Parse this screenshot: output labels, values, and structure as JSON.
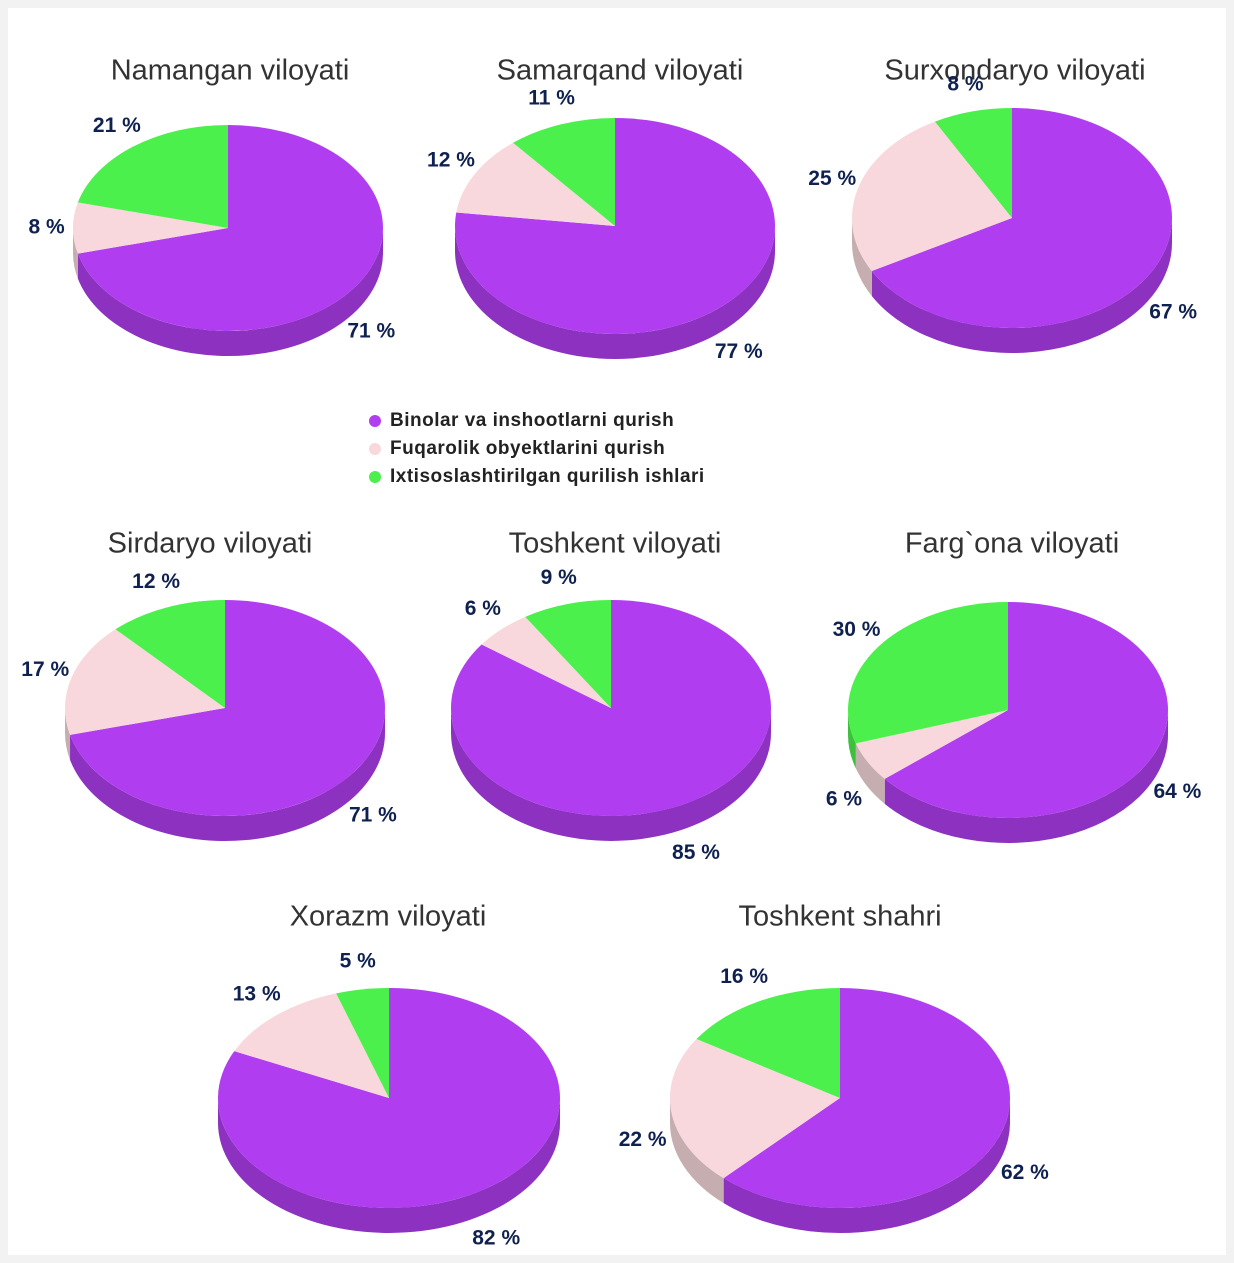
{
  "legend": [
    {
      "name": "Binolar va inshootlarni qurish",
      "color": "#b03ef0"
    },
    {
      "name": "Fuqarolik obyektlarini qurish",
      "color": "#f8d8dc"
    },
    {
      "name": "Ixtisoslashtirilgan qurilish ishlari",
      "color": "#4cf04c"
    }
  ],
  "chart_data": [
    {
      "type": "pie",
      "title": "Namangan viloyati",
      "values": [
        71,
        8,
        21
      ],
      "value_labels": [
        "71 %",
        "8 %",
        "21 %"
      ]
    },
    {
      "type": "pie",
      "title": "Samarqand viloyati",
      "values": [
        77,
        12,
        11
      ],
      "value_labels": [
        "77 %",
        "12 %",
        "11 %"
      ]
    },
    {
      "type": "pie",
      "title": "Surxondaryo viloyati",
      "values": [
        67,
        25,
        8
      ],
      "value_labels": [
        "67 %",
        "25 %",
        "8 %"
      ]
    },
    {
      "type": "pie",
      "title": "Sirdaryo viloyati",
      "values": [
        71,
        17,
        12
      ],
      "value_labels": [
        "71 %",
        "17 %",
        "12 %"
      ]
    },
    {
      "type": "pie",
      "title": "Toshkent viloyati",
      "values": [
        85,
        6,
        9
      ],
      "value_labels": [
        "85 %",
        "6 %",
        "9 %"
      ]
    },
    {
      "type": "pie",
      "title": "Farg`ona viloyati",
      "values": [
        64,
        6,
        30
      ],
      "value_labels": [
        "64 %",
        "6 %",
        "30 %"
      ]
    },
    {
      "type": "pie",
      "title": "Xorazm viloyati",
      "values": [
        82,
        13,
        5
      ],
      "value_labels": [
        "82 %",
        "13 %",
        "5 %"
      ]
    },
    {
      "type": "pie",
      "title": "Toshkent shahri",
      "values": [
        62,
        22,
        16
      ],
      "value_labels": [
        "62 %",
        "22 %",
        "16 %"
      ]
    }
  ]
}
